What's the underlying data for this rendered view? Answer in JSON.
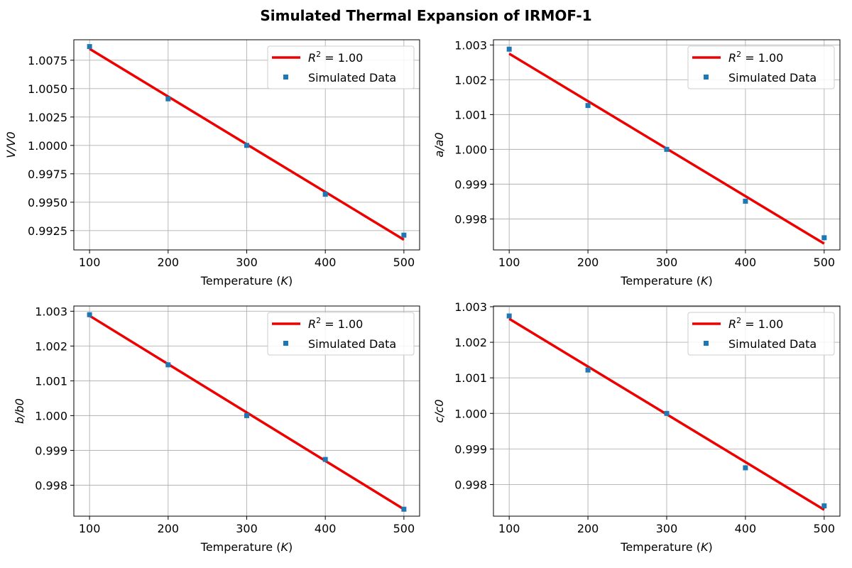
{
  "figure": {
    "title": "Simulated Thermal Expansion of IRMOF-1"
  },
  "colors": {
    "fit_line": "#ee0000",
    "data_marker": "#1f77b4"
  },
  "chart_data": [
    {
      "type": "scatter",
      "xlabel_prefix": "Temperature (",
      "xlabel_var": "K",
      "xlabel_suffix": ")",
      "ylabel": "V/V0",
      "xlim": [
        80,
        520
      ],
      "ylim": [
        0.9908,
        1.0093
      ],
      "xticks": [
        100,
        200,
        300,
        400,
        500
      ],
      "yticks": [
        0.9925,
        0.995,
        0.9975,
        1.0,
        1.0025,
        1.005,
        1.0075
      ],
      "ytick_labels": [
        "0.9925",
        "0.9950",
        "0.9975",
        "1.0000",
        "1.0025",
        "1.0050",
        "1.0075"
      ],
      "grid": true,
      "legend_position": "top-right",
      "series": [
        {
          "name": "Simulated Data",
          "kind": "scatter",
          "x": [
            100,
            200,
            300,
            400,
            500
          ],
          "y": [
            1.0087,
            1.0041,
            1.0,
            0.9957,
            0.9921
          ]
        },
        {
          "name_prefix": "R",
          "name_sup": "2",
          "name_suffix": " = 1.00",
          "kind": "line",
          "x": [
            100,
            500
          ],
          "y": [
            1.0085,
            0.9917
          ]
        }
      ]
    },
    {
      "type": "scatter",
      "xlabel_prefix": "Temperature (",
      "xlabel_var": "K",
      "xlabel_suffix": ")",
      "ylabel": "a/a0",
      "xlim": [
        80,
        520
      ],
      "ylim": [
        0.99711,
        1.00315
      ],
      "xticks": [
        100,
        200,
        300,
        400,
        500
      ],
      "yticks": [
        0.998,
        0.999,
        1.0,
        1.001,
        1.002,
        1.003
      ],
      "ytick_labels": [
        "0.998",
        "0.999",
        "1.000",
        "1.001",
        "1.002",
        "1.003"
      ],
      "grid": true,
      "legend_position": "top-right",
      "series": [
        {
          "name": "Simulated Data",
          "kind": "scatter",
          "x": [
            100,
            200,
            300,
            400,
            500
          ],
          "y": [
            1.00288,
            1.00126,
            1.0,
            0.99851,
            0.99746
          ]
        },
        {
          "name_prefix": "R",
          "name_sup": "2",
          "name_suffix": " = 1.00",
          "kind": "line",
          "x": [
            100,
            500
          ],
          "y": [
            1.00275,
            0.99729
          ]
        }
      ]
    },
    {
      "type": "scatter",
      "xlabel_prefix": "Temperature (",
      "xlabel_var": "K",
      "xlabel_suffix": ")",
      "ylabel": "b/b0",
      "xlim": [
        80,
        520
      ],
      "ylim": [
        0.99711,
        1.00315
      ],
      "xticks": [
        100,
        200,
        300,
        400,
        500
      ],
      "yticks": [
        0.998,
        0.999,
        1.0,
        1.001,
        1.002,
        1.003
      ],
      "ytick_labels": [
        "0.998",
        "0.999",
        "1.000",
        "1.001",
        "1.002",
        "1.003"
      ],
      "grid": true,
      "legend_position": "top-right",
      "series": [
        {
          "name": "Simulated Data",
          "kind": "scatter",
          "x": [
            100,
            200,
            300,
            400,
            500
          ],
          "y": [
            1.0029,
            1.00146,
            1.0,
            0.99874,
            0.99731
          ]
        },
        {
          "name_prefix": "R",
          "name_sup": "2",
          "name_suffix": " = 1.00",
          "kind": "line",
          "x": [
            100,
            500
          ],
          "y": [
            1.00287,
            0.99731
          ]
        }
      ]
    },
    {
      "type": "scatter",
      "xlabel_prefix": "Temperature (",
      "xlabel_var": "K",
      "xlabel_suffix": ")",
      "ylabel": "c/c0",
      "xlim": [
        80,
        520
      ],
      "ylim": [
        0.99711,
        1.00302
      ],
      "xticks": [
        100,
        200,
        300,
        400,
        500
      ],
      "yticks": [
        0.998,
        0.999,
        1.0,
        1.001,
        1.002,
        1.003
      ],
      "ytick_labels": [
        "0.998",
        "0.999",
        "1.000",
        "1.001",
        "1.002",
        "1.003"
      ],
      "grid": true,
      "legend_position": "top-right",
      "series": [
        {
          "name": "Simulated Data",
          "kind": "scatter",
          "x": [
            100,
            200,
            300,
            400,
            500
          ],
          "y": [
            1.00274,
            1.00122,
            1.0,
            0.99847,
            0.9974
          ]
        },
        {
          "name_prefix": "R",
          "name_sup": "2",
          "name_suffix": " = 1.00",
          "kind": "line",
          "x": [
            100,
            500
          ],
          "y": [
            1.00266,
            0.99729
          ]
        }
      ]
    }
  ]
}
